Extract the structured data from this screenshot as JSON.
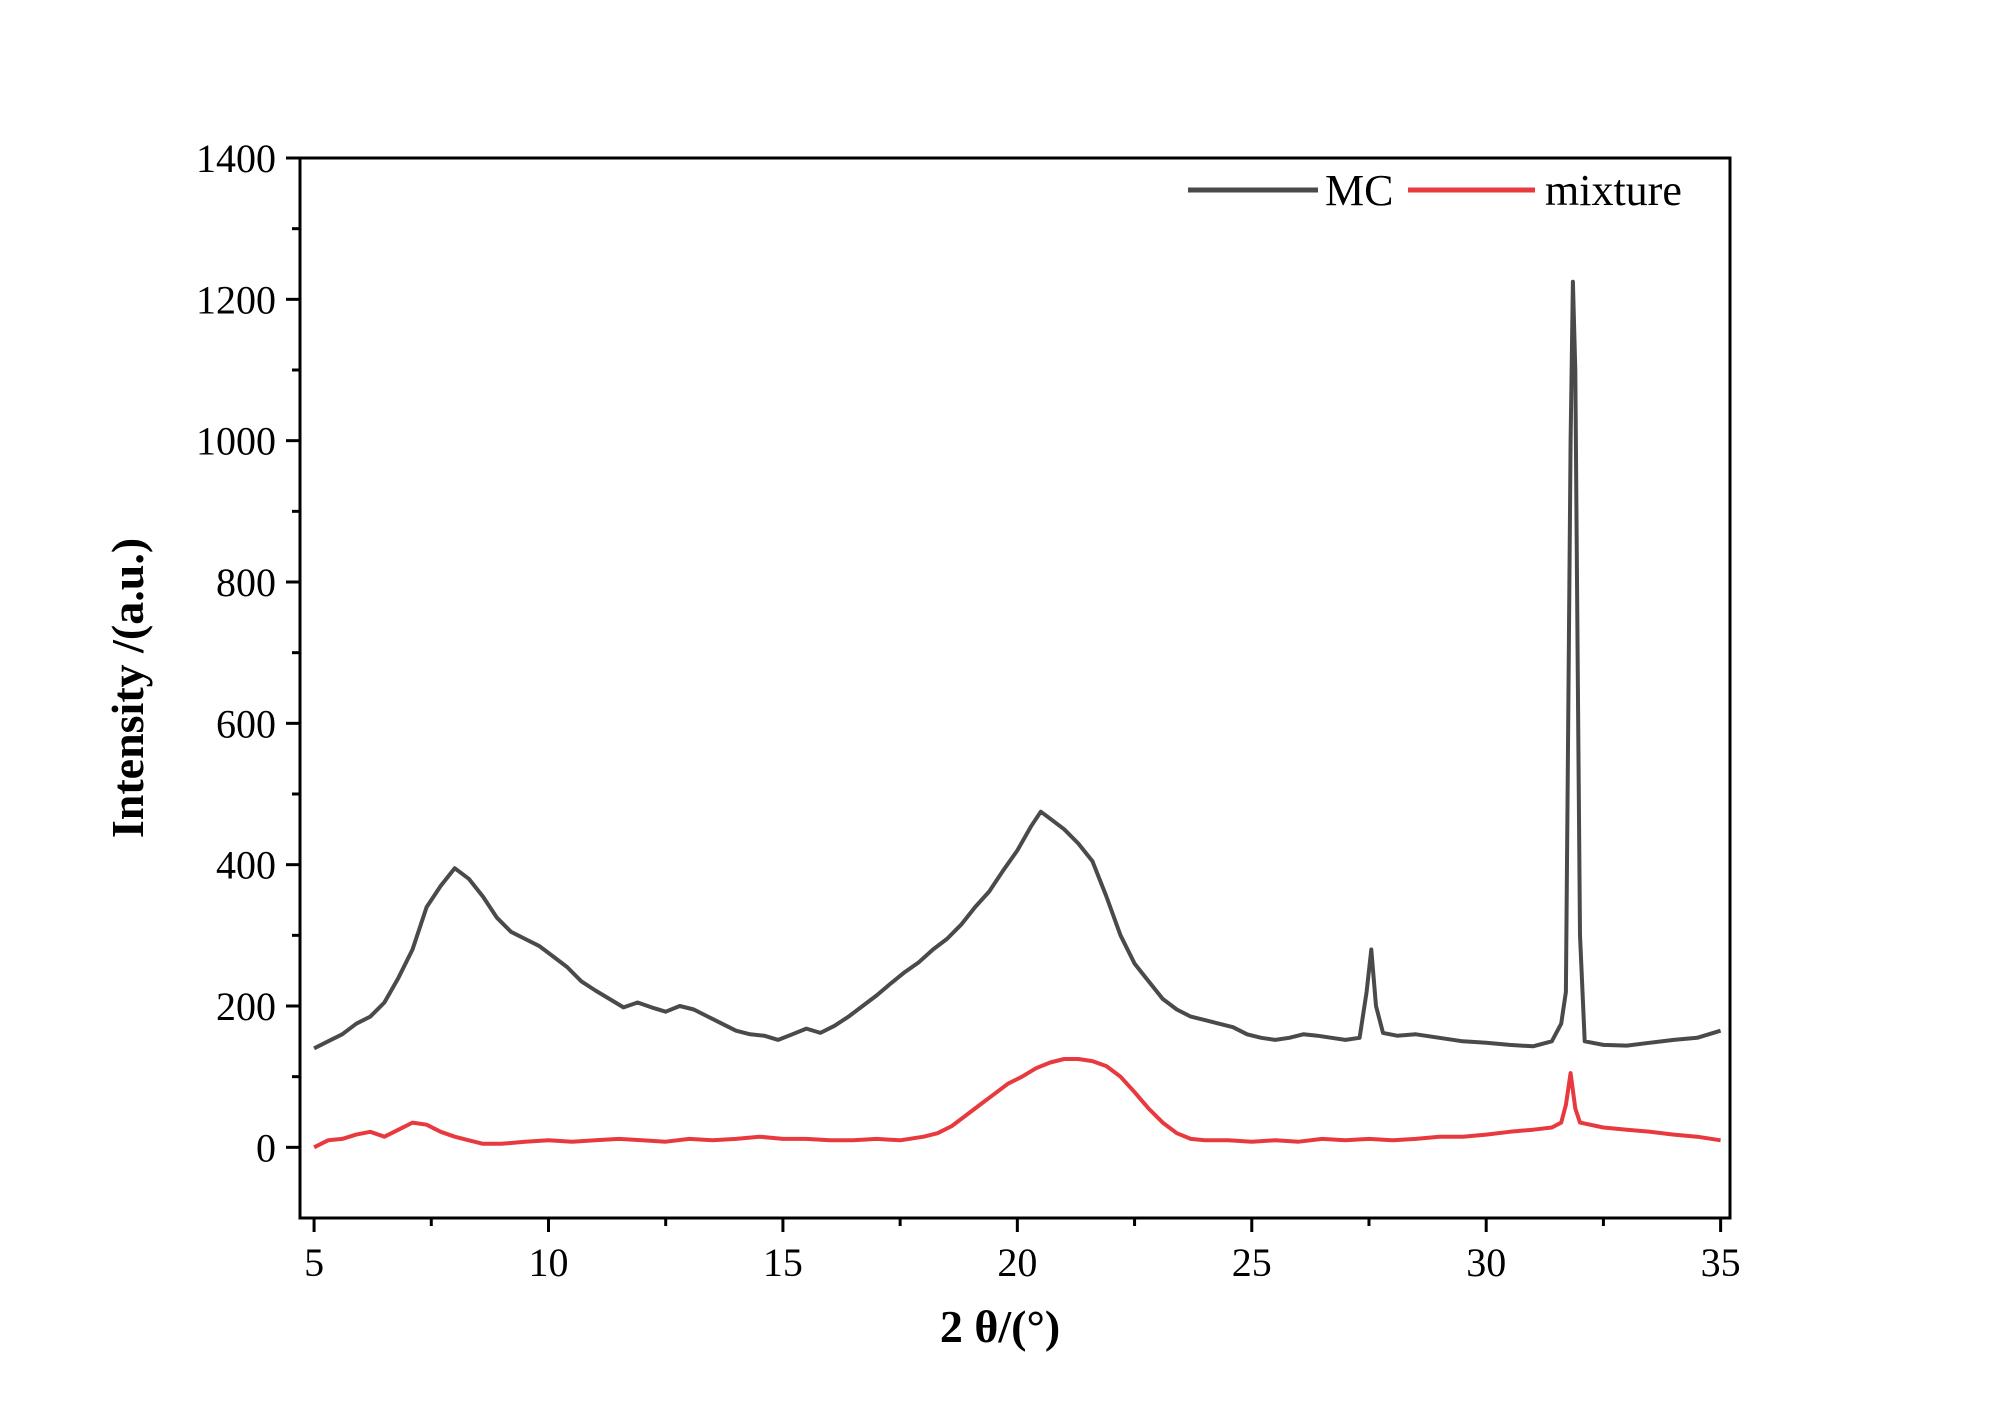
{
  "chart_data": {
    "type": "line",
    "title": "",
    "xlabel": "2 θ/(°)",
    "ylabel": "Intensity /(a.u.)",
    "xlim": [
      4.7,
      35.2
    ],
    "ylim": [
      -100,
      1400
    ],
    "xticks": [
      5,
      10,
      15,
      20,
      25,
      30,
      35
    ],
    "yticks": [
      0,
      200,
      400,
      600,
      800,
      1000,
      1200,
      1400
    ],
    "grid": false,
    "legend_position": "top-right",
    "series": [
      {
        "name": "MC",
        "color": "#4a4a4a",
        "points": [
          [
            5.0,
            140
          ],
          [
            5.3,
            150
          ],
          [
            5.6,
            160
          ],
          [
            5.9,
            175
          ],
          [
            6.2,
            185
          ],
          [
            6.5,
            205
          ],
          [
            6.8,
            240
          ],
          [
            7.1,
            280
          ],
          [
            7.4,
            340
          ],
          [
            7.7,
            370
          ],
          [
            8.0,
            395
          ],
          [
            8.3,
            380
          ],
          [
            8.6,
            355
          ],
          [
            8.9,
            325
          ],
          [
            9.2,
            305
          ],
          [
            9.5,
            295
          ],
          [
            9.8,
            285
          ],
          [
            10.1,
            270
          ],
          [
            10.4,
            255
          ],
          [
            10.7,
            235
          ],
          [
            11.0,
            222
          ],
          [
            11.3,
            210
          ],
          [
            11.6,
            198
          ],
          [
            11.9,
            205
          ],
          [
            12.2,
            198
          ],
          [
            12.5,
            192
          ],
          [
            12.8,
            200
          ],
          [
            13.1,
            195
          ],
          [
            13.4,
            185
          ],
          [
            13.7,
            175
          ],
          [
            14.0,
            165
          ],
          [
            14.3,
            160
          ],
          [
            14.6,
            158
          ],
          [
            14.9,
            152
          ],
          [
            15.2,
            160
          ],
          [
            15.5,
            168
          ],
          [
            15.8,
            162
          ],
          [
            16.1,
            172
          ],
          [
            16.4,
            185
          ],
          [
            16.7,
            200
          ],
          [
            17.0,
            215
          ],
          [
            17.3,
            232
          ],
          [
            17.6,
            248
          ],
          [
            17.9,
            262
          ],
          [
            18.2,
            280
          ],
          [
            18.5,
            295
          ],
          [
            18.8,
            315
          ],
          [
            19.1,
            340
          ],
          [
            19.4,
            362
          ],
          [
            19.7,
            392
          ],
          [
            20.0,
            420
          ],
          [
            20.3,
            455
          ],
          [
            20.5,
            475
          ],
          [
            20.7,
            465
          ],
          [
            21.0,
            450
          ],
          [
            21.3,
            430
          ],
          [
            21.6,
            405
          ],
          [
            21.9,
            355
          ],
          [
            22.2,
            300
          ],
          [
            22.5,
            260
          ],
          [
            22.8,
            235
          ],
          [
            23.1,
            210
          ],
          [
            23.4,
            195
          ],
          [
            23.7,
            185
          ],
          [
            24.0,
            180
          ],
          [
            24.3,
            175
          ],
          [
            24.6,
            170
          ],
          [
            24.9,
            160
          ],
          [
            25.2,
            155
          ],
          [
            25.5,
            152
          ],
          [
            25.8,
            155
          ],
          [
            26.1,
            160
          ],
          [
            26.4,
            158
          ],
          [
            26.7,
            155
          ],
          [
            27.0,
            152
          ],
          [
            27.3,
            155
          ],
          [
            27.45,
            220
          ],
          [
            27.55,
            280
          ],
          [
            27.65,
            200
          ],
          [
            27.8,
            162
          ],
          [
            28.1,
            158
          ],
          [
            28.5,
            160
          ],
          [
            29.0,
            155
          ],
          [
            29.5,
            150
          ],
          [
            30.0,
            148
          ],
          [
            30.5,
            145
          ],
          [
            31.0,
            143
          ],
          [
            31.4,
            150
          ],
          [
            31.6,
            175
          ],
          [
            31.7,
            220
          ],
          [
            31.75,
            600
          ],
          [
            31.8,
            1000
          ],
          [
            31.85,
            1225
          ],
          [
            31.9,
            1100
          ],
          [
            31.95,
            700
          ],
          [
            32.0,
            300
          ],
          [
            32.1,
            150
          ],
          [
            32.5,
            145
          ],
          [
            33.0,
            144
          ],
          [
            33.5,
            148
          ],
          [
            34.0,
            152
          ],
          [
            34.5,
            155
          ],
          [
            35.0,
            165
          ]
        ]
      },
      {
        "name": "mixture",
        "color": "#e83a3e",
        "points": [
          [
            5.0,
            0
          ],
          [
            5.3,
            10
          ],
          [
            5.6,
            12
          ],
          [
            5.9,
            18
          ],
          [
            6.2,
            22
          ],
          [
            6.5,
            15
          ],
          [
            6.8,
            25
          ],
          [
            7.1,
            35
          ],
          [
            7.4,
            32
          ],
          [
            7.7,
            22
          ],
          [
            8.0,
            15
          ],
          [
            8.3,
            10
          ],
          [
            8.6,
            5
          ],
          [
            9.0,
            5
          ],
          [
            9.5,
            8
          ],
          [
            10.0,
            10
          ],
          [
            10.5,
            8
          ],
          [
            11.0,
            10
          ],
          [
            11.5,
            12
          ],
          [
            12.0,
            10
          ],
          [
            12.5,
            8
          ],
          [
            13.0,
            12
          ],
          [
            13.5,
            10
          ],
          [
            14.0,
            12
          ],
          [
            14.5,
            15
          ],
          [
            15.0,
            12
          ],
          [
            15.5,
            12
          ],
          [
            16.0,
            10
          ],
          [
            16.5,
            10
          ],
          [
            17.0,
            12
          ],
          [
            17.5,
            10
          ],
          [
            18.0,
            15
          ],
          [
            18.3,
            20
          ],
          [
            18.6,
            30
          ],
          [
            18.9,
            45
          ],
          [
            19.2,
            60
          ],
          [
            19.5,
            75
          ],
          [
            19.8,
            90
          ],
          [
            20.1,
            100
          ],
          [
            20.4,
            112
          ],
          [
            20.7,
            120
          ],
          [
            21.0,
            125
          ],
          [
            21.3,
            125
          ],
          [
            21.6,
            122
          ],
          [
            21.9,
            115
          ],
          [
            22.2,
            100
          ],
          [
            22.5,
            78
          ],
          [
            22.8,
            55
          ],
          [
            23.1,
            35
          ],
          [
            23.4,
            20
          ],
          [
            23.7,
            12
          ],
          [
            24.0,
            10
          ],
          [
            24.5,
            10
          ],
          [
            25.0,
            8
          ],
          [
            25.5,
            10
          ],
          [
            26.0,
            8
          ],
          [
            26.5,
            12
          ],
          [
            27.0,
            10
          ],
          [
            27.5,
            12
          ],
          [
            28.0,
            10
          ],
          [
            28.5,
            12
          ],
          [
            29.0,
            15
          ],
          [
            29.5,
            15
          ],
          [
            30.0,
            18
          ],
          [
            30.5,
            22
          ],
          [
            31.0,
            25
          ],
          [
            31.4,
            28
          ],
          [
            31.6,
            35
          ],
          [
            31.7,
            60
          ],
          [
            31.8,
            105
          ],
          [
            31.9,
            55
          ],
          [
            32.0,
            35
          ],
          [
            32.5,
            28
          ],
          [
            33.0,
            25
          ],
          [
            33.5,
            22
          ],
          [
            34.0,
            18
          ],
          [
            34.5,
            15
          ],
          [
            35.0,
            10
          ]
        ]
      }
    ]
  }
}
